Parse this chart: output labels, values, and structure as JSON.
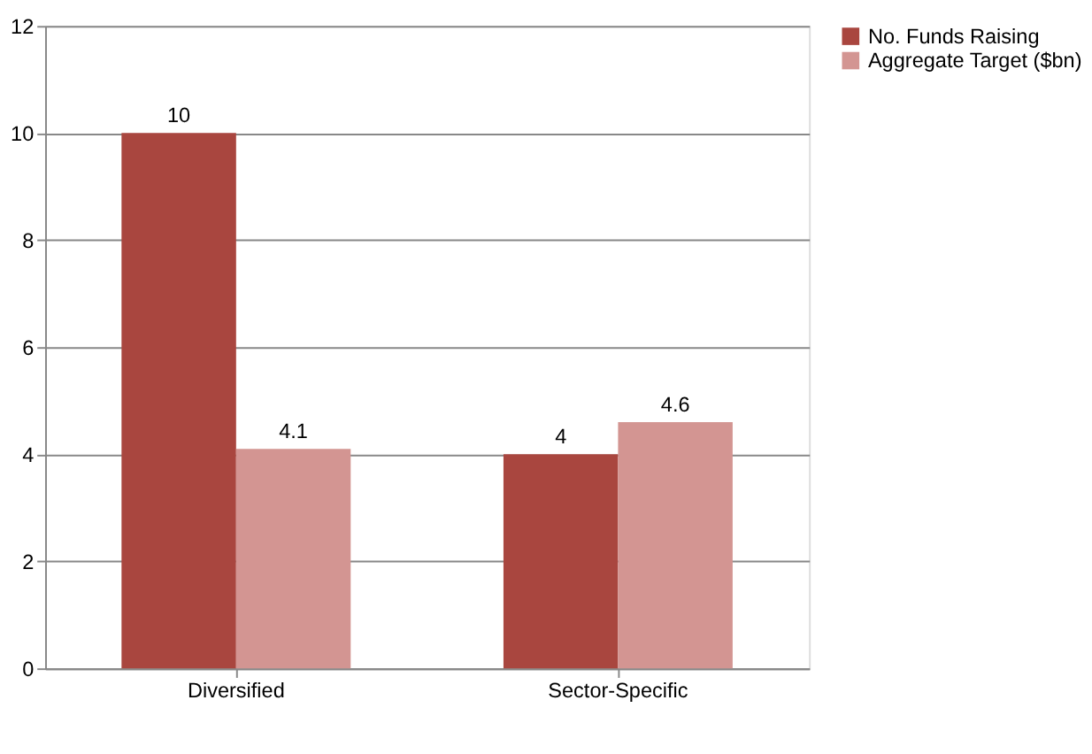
{
  "chart_data": {
    "type": "bar",
    "categories": [
      "Diversified",
      "Sector-Specific"
    ],
    "series": [
      {
        "name": "No. Funds Raising",
        "color": "#a9463f",
        "values": [
          10,
          4
        ]
      },
      {
        "name": "Aggregate Target ($bn)",
        "color": "#d39592",
        "values": [
          4.1,
          4.6
        ]
      }
    ],
    "ylim": [
      0,
      12
    ],
    "yticks": [
      0,
      2,
      4,
      6,
      8,
      10,
      12
    ],
    "grid": "y",
    "legend": "right",
    "data_labels": true
  }
}
